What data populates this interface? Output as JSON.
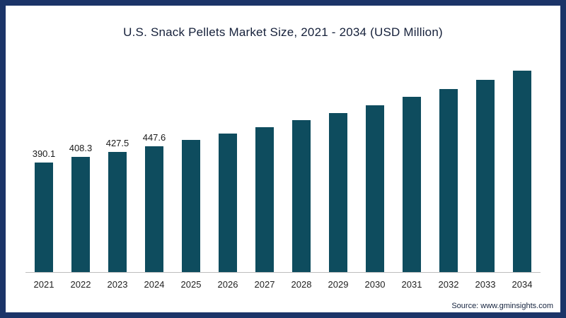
{
  "frame": {
    "border_color": "#1b3468",
    "background": "#ffffff"
  },
  "chart_data": {
    "type": "bar",
    "title": "U.S. Snack Pellets Market Size, 2021 - 2034 (USD Million)",
    "xlabel": "",
    "ylabel": "",
    "categories": [
      "2021",
      "2022",
      "2023",
      "2024",
      "2025",
      "2026",
      "2027",
      "2028",
      "2029",
      "2030",
      "2031",
      "2032",
      "2033",
      "2034"
    ],
    "values": [
      390.1,
      408.3,
      427.5,
      447.6,
      469.0,
      491.5,
      515.1,
      539.8,
      565.7,
      592.9,
      621.4,
      651.2,
      682.5,
      715.2
    ],
    "data_labels": [
      "390.1",
      "408.3",
      "427.5",
      "447.6",
      "",
      "",
      "",
      "",
      "",
      "",
      "",
      "",
      "",
      ""
    ],
    "bar_color": "#0e4c5e",
    "ylim": [
      0,
      750
    ],
    "grid": false,
    "legend": false
  },
  "source": {
    "text": "Source: www.gminsights.com"
  }
}
